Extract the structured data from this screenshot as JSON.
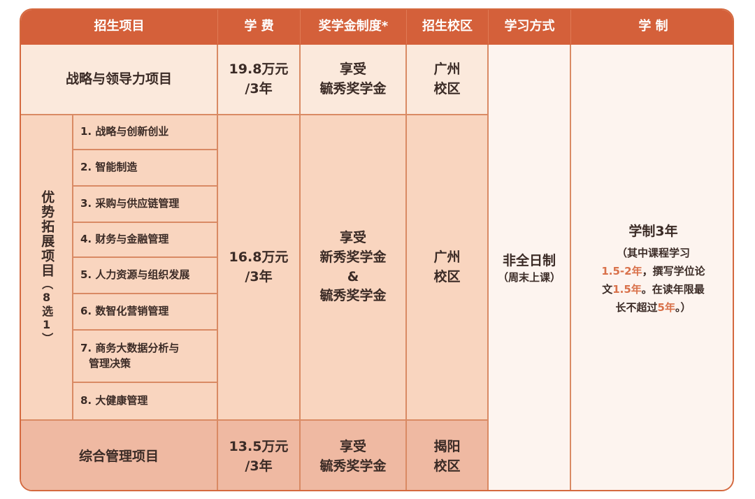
{
  "header": [
    "招生项目",
    "学 费",
    "奖学金制度*",
    "招生校区",
    "学习方式",
    "学 制"
  ],
  "rows": {
    "strategy": {
      "name": "战略与领导力项目",
      "fee": [
        "19.8万元",
        "/3年"
      ],
      "scholarship": [
        "享受",
        "毓秀奖学金"
      ],
      "campus": [
        "广州",
        "校区"
      ]
    },
    "featured": {
      "name": "优势拓展项目",
      "note": "（8选1）",
      "items": [
        "1. 战略与创新创业",
        "2. 智能制造",
        "3. 采购与供应链管理",
        "4. 财务与金融管理",
        "5. 人力资源与组织发展",
        "6. 数智化营销管理",
        "7. 商务大数据分析与",
        "管理决策",
        "8. 大健康管理"
      ],
      "fee": [
        "16.8万元",
        "/3年"
      ],
      "scholarship": [
        "享受",
        "新秀奖学金",
        "&",
        "毓秀奖学金"
      ],
      "campus": [
        "广州",
        "校区"
      ]
    },
    "general": {
      "name": "综合管理项目",
      "fee": [
        "13.5万元",
        "/3年"
      ],
      "scholarship": [
        "享受",
        "毓秀奖学金"
      ],
      "campus": [
        "揭阳",
        "校区"
      ]
    }
  },
  "mode": {
    "main": "非全日制",
    "sub": "（周末上课）"
  },
  "duration": {
    "main": "学制3年",
    "l1": "（其中课程学习",
    "l2a": "1.5-2年",
    "l2b": "，撰写学位论",
    "l3a": "文",
    "l3b": "1.5年",
    "l3c": "。在读年限最",
    "l4a": "长不超过",
    "l4b": "5年",
    "l4c": "。）"
  },
  "colors": {
    "header": "#d4603a",
    "highlight": "#d9714a"
  }
}
